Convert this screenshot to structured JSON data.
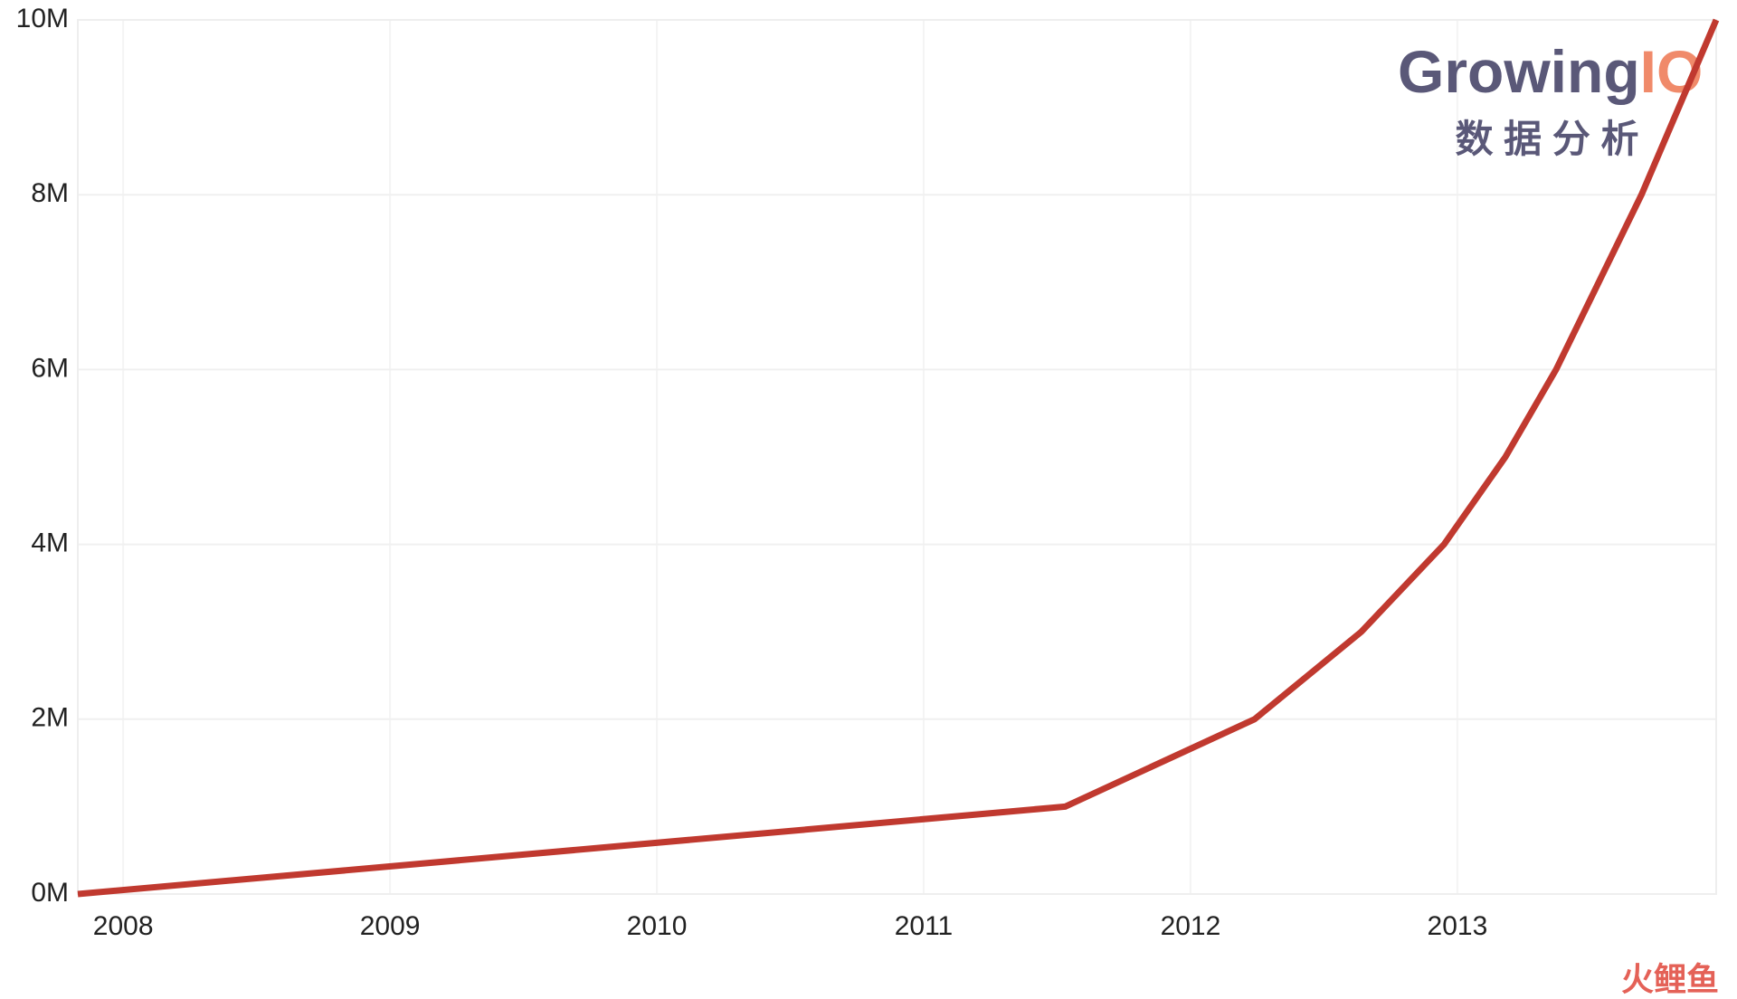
{
  "chart_data": {
    "type": "line",
    "x": [
      2007.83,
      2011.53,
      2012.24,
      2012.64,
      2012.95,
      2013.18,
      2013.37,
      2013.53,
      2013.69,
      2013.83,
      2013.97
    ],
    "series": [
      {
        "name": null,
        "color": "#c0392f",
        "values": [
          0,
          1000000,
          2000000,
          3000000,
          4000000,
          5000000,
          6000000,
          7000000,
          8000000,
          9000000,
          10000000
        ]
      }
    ],
    "xlim": [
      2007.83,
      2013.97
    ],
    "xticks": [
      2008,
      2009,
      2010,
      2011,
      2012,
      2013
    ],
    "ylim": [
      0,
      10000000
    ],
    "yticks": [
      {
        "value": 0,
        "label": "0M"
      },
      {
        "value": 2000000,
        "label": "2M"
      },
      {
        "value": 4000000,
        "label": "4M"
      },
      {
        "value": 6000000,
        "label": "6M"
      },
      {
        "value": 8000000,
        "label": "8M"
      },
      {
        "value": 10000000,
        "label": "10M"
      }
    ],
    "grid": true,
    "annotations": {
      "logo_main": "Growing",
      "logo_accent": "IO",
      "logo_sub": "数 据 分 析",
      "watermark": "火鲤鱼"
    }
  }
}
